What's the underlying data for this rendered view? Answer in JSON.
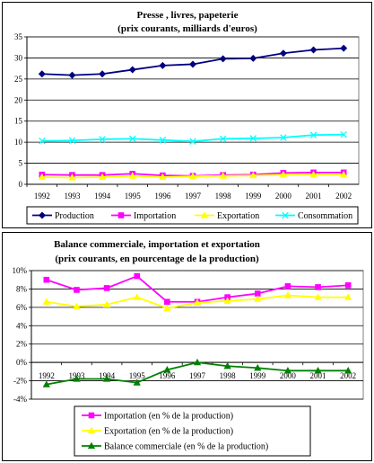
{
  "chart_data": [
    {
      "type": "line",
      "title": "Presse , livres, papeterie",
      "subtitle": "(prix courants, milliards d'euros)",
      "x": [
        "1992",
        "1993",
        "1994",
        "1995",
        "1996",
        "1997",
        "1998",
        "1999",
        "2000",
        "2001",
        "2002"
      ],
      "ylim": [
        0,
        35
      ],
      "yticks": [
        "0",
        "5",
        "10",
        "15",
        "20",
        "25",
        "30",
        "35"
      ],
      "ytick_values": [
        0,
        5,
        10,
        15,
        20,
        25,
        30,
        35
      ],
      "grid": true,
      "legend_placement": "bottom",
      "series": [
        {
          "name": "Production",
          "color": "#000080",
          "marker": "diamond",
          "values": [
            26.2,
            25.9,
            26.2,
            27.2,
            28.2,
            28.5,
            29.8,
            29.9,
            31.1,
            31.9,
            32.3
          ]
        },
        {
          "name": "Importation",
          "color": "#FF00FF",
          "marker": "square",
          "values": [
            2.3,
            2.2,
            2.2,
            2.5,
            2.1,
            2.0,
            2.2,
            2.3,
            2.7,
            2.8,
            2.8
          ]
        },
        {
          "name": "Exportation",
          "color": "#FFFF00",
          "marker": "triangle",
          "values": [
            1.7,
            1.6,
            1.7,
            2.0,
            1.7,
            1.9,
            2.0,
            2.1,
            2.3,
            2.3,
            2.3
          ]
        },
        {
          "name": "Consommation",
          "color": "#00FFFF",
          "marker": "x",
          "values": [
            10.3,
            10.4,
            10.7,
            10.8,
            10.5,
            10.2,
            10.8,
            10.9,
            11.1,
            11.7,
            11.8
          ]
        }
      ]
    },
    {
      "type": "line",
      "title": "Balance commerciale, importation et exportation",
      "subtitle": "(prix courants, en pourcentage de la production)",
      "x": [
        "1992",
        "1993",
        "1994",
        "1995",
        "1996",
        "1997",
        "1998",
        "1999",
        "2000",
        "2001",
        "2002"
      ],
      "ylim": [
        -4,
        10
      ],
      "yticks": [
        "-4%",
        "-2%",
        "0%",
        "2%",
        "4%",
        "6%",
        "8%",
        "10%"
      ],
      "ytick_values": [
        -4,
        -2,
        0,
        2,
        4,
        6,
        8,
        10
      ],
      "grid": true,
      "legend_placement": "bottom",
      "series": [
        {
          "name": "Importation (en % de la production)",
          "color": "#FF00FF",
          "marker": "square",
          "values": [
            9.0,
            7.9,
            8.1,
            9.4,
            6.6,
            6.6,
            7.1,
            7.5,
            8.3,
            8.2,
            8.4
          ]
        },
        {
          "name": "Exportation (en % de la production)",
          "color": "#FFFF00",
          "marker": "triangle",
          "values": [
            6.6,
            6.1,
            6.3,
            7.1,
            5.9,
            6.5,
            6.7,
            6.9,
            7.3,
            7.1,
            7.1
          ]
        },
        {
          "name": "Balance commerciale (en % de la production)",
          "color": "#008000",
          "marker": "triangle",
          "values": [
            -2.4,
            -1.8,
            -1.8,
            -2.2,
            -0.8,
            0.0,
            -0.4,
            -0.6,
            -0.9,
            -0.9,
            -0.9
          ]
        }
      ]
    }
  ]
}
